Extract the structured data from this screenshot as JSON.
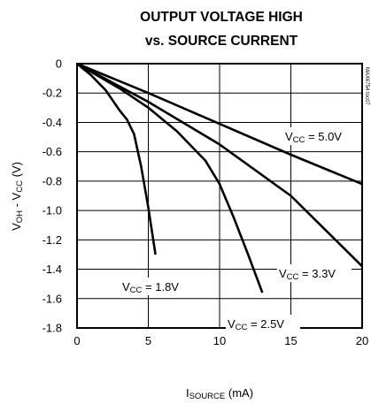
{
  "chart_data": {
    "type": "line",
    "title_lines": [
      "OUTPUT VOLTAGE HIGH",
      "vs. SOURCE CURRENT"
    ],
    "xlabel": {
      "main": "I",
      "sub": "SOURCE",
      "tail": " (mA)"
    },
    "ylabel": {
      "main": "V",
      "sub1": "OH",
      "mid": " - V",
      "sub2": "CC",
      "tail": " (V)"
    },
    "xlim": [
      0,
      20
    ],
    "ylim": [
      -1.8,
      0
    ],
    "xticks": [
      0,
      5,
      10,
      15,
      20
    ],
    "yticks": [
      0,
      -0.2,
      -0.4,
      -0.6,
      -0.8,
      -1.0,
      -1.2,
      -1.4,
      -1.6,
      -1.8
    ],
    "xtick_labels": [
      "0",
      "5",
      "10",
      "15",
      "20"
    ],
    "ytick_labels": [
      "0",
      "-0.2",
      "-0.4",
      "-0.6",
      "-0.8",
      "-1.0",
      "-1.2",
      "-1.4",
      "-1.6",
      "-1.8"
    ],
    "grid": true,
    "side_id": "MAX6754 toc07",
    "series": [
      {
        "name": "VCC = 5.0V",
        "label": {
          "main": "V",
          "sub": "CC",
          "tail": " = 5.0V"
        },
        "x": [
          0,
          5,
          10,
          15,
          20
        ],
        "y": [
          0,
          -0.2,
          -0.41,
          -0.62,
          -0.82
        ]
      },
      {
        "name": "VCC = 3.3V",
        "label": {
          "main": "V",
          "sub": "CC",
          "tail": " = 3.3V"
        },
        "x": [
          0,
          5,
          10,
          15,
          20
        ],
        "y": [
          0,
          -0.26,
          -0.55,
          -0.9,
          -1.38
        ]
      },
      {
        "name": "VCC = 2.5V",
        "label": {
          "main": "V",
          "sub": "CC",
          "tail": " = 2.5V"
        },
        "x": [
          0,
          3,
          5,
          7,
          9,
          10,
          11,
          12,
          13
        ],
        "y": [
          0,
          -0.17,
          -0.3,
          -0.46,
          -0.66,
          -0.82,
          -1.05,
          -1.3,
          -1.56
        ]
      },
      {
        "name": "VCC = 1.8V",
        "label": {
          "main": "V",
          "sub": "CC",
          "tail": " = 1.8V"
        },
        "x": [
          0,
          1,
          2,
          3,
          3.5,
          4,
          4.5,
          5,
          5.5
        ],
        "y": [
          0,
          -0.08,
          -0.18,
          -0.32,
          -0.38,
          -0.48,
          -0.7,
          -0.98,
          -1.3
        ]
      }
    ]
  }
}
